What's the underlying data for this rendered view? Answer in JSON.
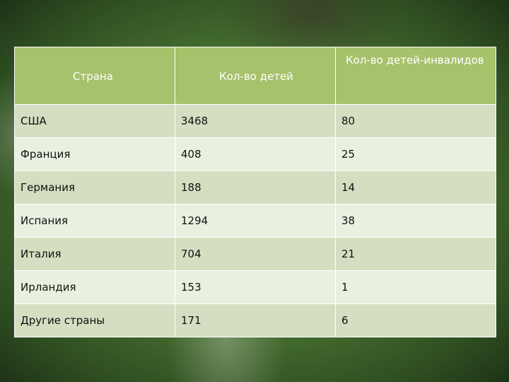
{
  "table": {
    "headers": {
      "country": "Страна",
      "children": "Кол-во детей",
      "disabled_children": "Кол-во детей-инвалидов"
    },
    "rows": [
      {
        "country": "США",
        "children": "3468",
        "disabled": "80"
      },
      {
        "country": "Франция",
        "children": "408",
        "disabled": "25"
      },
      {
        "country": "Германия",
        "children": "188",
        "disabled": "14"
      },
      {
        "country": "Испания",
        "children": "1294",
        "disabled": "38"
      },
      {
        "country": "Италия",
        "children": "704",
        "disabled": "21"
      },
      {
        "country": "Ирландия",
        "children": "153",
        "disabled": "1"
      },
      {
        "country": "Другие страны",
        "children": "171",
        "disabled": "6"
      }
    ]
  },
  "colors": {
    "header_bg": "#a6c26b",
    "row_dark": "#d3dfc0",
    "row_light": "#eaf0e0",
    "background": "#4d7a34"
  }
}
